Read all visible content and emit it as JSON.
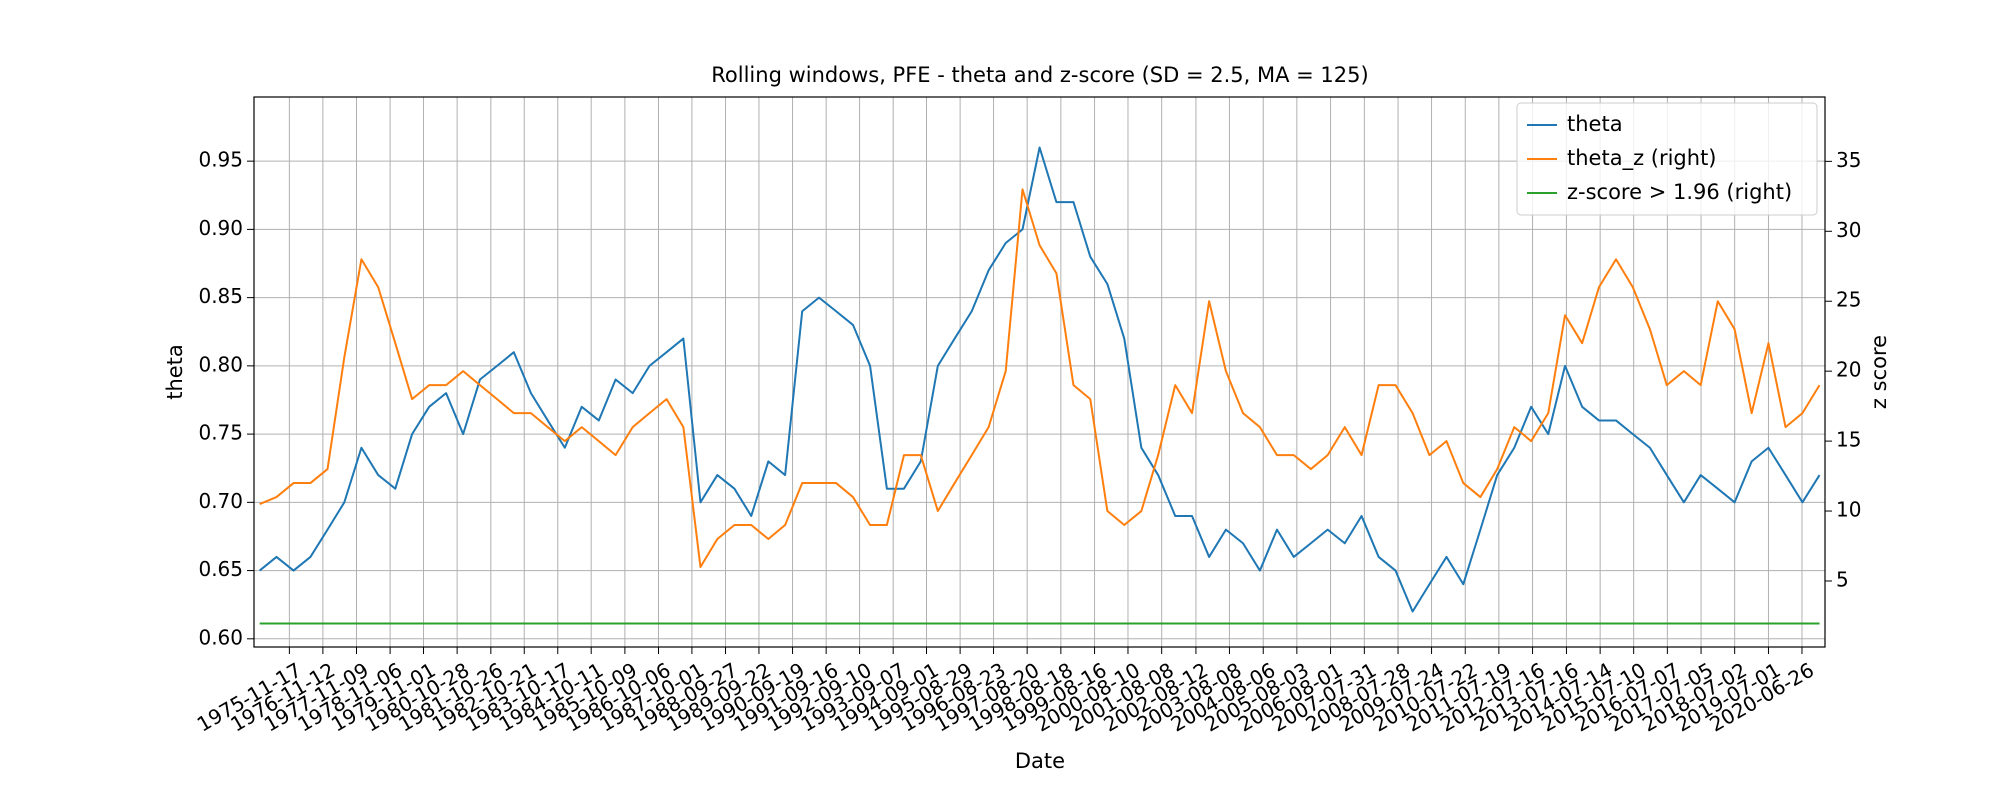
{
  "chart_data": {
    "type": "line",
    "title": "Rolling windows, PFE - theta and z-score (SD = 2.5, MA = 125)",
    "x_label": "Date",
    "y_label": "theta",
    "y2_label": "z score",
    "x": [
      "1975-01-01",
      "1975-07-01",
      "1976-01-01",
      "1976-07-01",
      "1977-01-01",
      "1977-07-01",
      "1978-01-01",
      "1978-07-01",
      "1979-01-01",
      "1979-07-01",
      "1980-01-01",
      "1980-07-01",
      "1981-01-01",
      "1981-07-01",
      "1982-01-01",
      "1982-07-01",
      "1983-01-01",
      "1983-07-01",
      "1984-01-01",
      "1984-07-01",
      "1985-01-01",
      "1985-07-01",
      "1986-01-01",
      "1986-07-01",
      "1987-01-01",
      "1987-07-01",
      "1988-01-01",
      "1988-07-01",
      "1989-01-01",
      "1989-07-01",
      "1990-01-01",
      "1990-07-01",
      "1991-01-01",
      "1991-07-01",
      "1992-01-01",
      "1992-07-01",
      "1993-01-01",
      "1993-07-01",
      "1994-01-01",
      "1994-07-01",
      "1995-01-01",
      "1995-07-01",
      "1996-01-01",
      "1996-07-01",
      "1997-01-01",
      "1997-07-01",
      "1998-01-01",
      "1998-07-01",
      "1999-01-01",
      "1999-07-01",
      "2000-01-01",
      "2000-07-01",
      "2001-01-01",
      "2001-07-01",
      "2002-01-01",
      "2002-07-01",
      "2003-01-01",
      "2003-07-01",
      "2004-01-01",
      "2004-07-01",
      "2005-01-01",
      "2005-07-01",
      "2006-01-01",
      "2006-07-01",
      "2007-01-01",
      "2007-07-01",
      "2008-01-01",
      "2008-07-01",
      "2009-01-01",
      "2009-07-01",
      "2010-01-01",
      "2010-07-01",
      "2011-01-01",
      "2011-07-01",
      "2012-01-01",
      "2012-07-01",
      "2013-01-01",
      "2013-07-01",
      "2014-01-01",
      "2014-07-01",
      "2015-01-01",
      "2015-07-01",
      "2016-01-01",
      "2016-07-01",
      "2017-01-01",
      "2017-07-01",
      "2018-01-01",
      "2018-07-01",
      "2019-01-01",
      "2019-07-01",
      "2020-01-01",
      "2020-07-01",
      "2021-01-01"
    ],
    "series": [
      {
        "name": "theta",
        "color": "#1f77b4",
        "axis": "y",
        "values": [
          0.65,
          0.66,
          0.65,
          0.66,
          0.68,
          0.7,
          0.74,
          0.72,
          0.71,
          0.75,
          0.77,
          0.78,
          0.75,
          0.79,
          0.8,
          0.81,
          0.78,
          0.76,
          0.74,
          0.77,
          0.76,
          0.79,
          0.78,
          0.8,
          0.81,
          0.82,
          0.7,
          0.72,
          0.71,
          0.69,
          0.73,
          0.72,
          0.84,
          0.85,
          0.84,
          0.83,
          0.8,
          0.71,
          0.71,
          0.73,
          0.8,
          0.82,
          0.84,
          0.87,
          0.89,
          0.9,
          0.96,
          0.92,
          0.92,
          0.88,
          0.86,
          0.82,
          0.74,
          0.72,
          0.69,
          0.69,
          0.66,
          0.68,
          0.67,
          0.65,
          0.68,
          0.66,
          0.67,
          0.68,
          0.67,
          0.69,
          0.66,
          0.65,
          0.62,
          0.64,
          0.66,
          0.64,
          0.68,
          0.72,
          0.74,
          0.77,
          0.75,
          0.8,
          0.77,
          0.76,
          0.76,
          0.75,
          0.74,
          0.72,
          0.7,
          0.72,
          0.71,
          0.7,
          0.73,
          0.74,
          0.72,
          0.7,
          0.72
        ]
      },
      {
        "name": "theta_z (right)",
        "color": "#ff7f0e",
        "axis": "y2",
        "values": [
          10.5,
          11,
          12,
          12,
          13,
          21,
          28,
          26,
          22,
          18,
          19,
          19,
          20,
          19,
          18,
          17,
          17,
          16,
          15,
          16,
          15,
          14,
          16,
          17,
          18,
          16,
          6,
          8,
          9,
          9,
          8,
          9,
          12,
          12,
          12,
          11,
          9,
          9,
          14,
          14,
          10,
          12,
          14,
          16,
          20,
          33,
          29,
          27,
          19,
          18,
          10,
          9,
          10,
          14,
          19,
          17,
          25,
          20,
          17,
          16,
          14,
          14,
          13,
          14,
          16,
          14,
          19,
          19,
          17,
          14,
          15,
          12,
          11,
          13,
          16,
          15,
          17,
          24,
          22,
          26,
          28,
          26,
          23,
          19,
          20,
          19,
          25,
          23,
          17,
          22,
          16,
          17,
          19
        ]
      },
      {
        "name": "z-score > 1.96 (right)",
        "color": "#2ca02c",
        "axis": "y2",
        "x": [
          "1975-01-01",
          "2021-01-01"
        ],
        "values": [
          1.96,
          1.96
        ]
      }
    ],
    "xlim": [
      "1974-11-01",
      "2021-03-01"
    ],
    "xticks": [
      "1975-11-17",
      "1976-11-12",
      "1977-11-09",
      "1978-11-06",
      "1979-11-01",
      "1980-10-28",
      "1981-10-26",
      "1982-10-21",
      "1983-10-17",
      "1984-10-11",
      "1985-10-09",
      "1986-10-06",
      "1987-10-01",
      "1988-09-27",
      "1989-09-22",
      "1990-09-19",
      "1991-09-16",
      "1992-09-10",
      "1993-09-07",
      "1994-09-01",
      "1995-08-29",
      "1996-08-23",
      "1997-08-20",
      "1998-08-18",
      "1999-08-16",
      "2000-08-10",
      "2001-08-08",
      "2002-08-12",
      "2003-08-08",
      "2004-08-06",
      "2005-08-03",
      "2006-08-01",
      "2007-07-31",
      "2008-07-28",
      "2009-07-24",
      "2010-07-22",
      "2011-07-19",
      "2012-07-16",
      "2013-07-16",
      "2014-07-14",
      "2015-07-10",
      "2016-07-07",
      "2017-07-05",
      "2018-07-02",
      "2019-07-01",
      "2020-06-26"
    ],
    "ylim": [
      0.594,
      0.997
    ],
    "yticks": [
      {
        "value": 0.6,
        "label": "0.60"
      },
      {
        "value": 0.65,
        "label": "0.65"
      },
      {
        "value": 0.7,
        "label": "0.70"
      },
      {
        "value": 0.75,
        "label": "0.75"
      },
      {
        "value": 0.8,
        "label": "0.80"
      },
      {
        "value": 0.85,
        "label": "0.85"
      },
      {
        "value": 0.9,
        "label": "0.90"
      },
      {
        "value": 0.95,
        "label": "0.95"
      }
    ],
    "y2lim": [
      0.28,
      39.6
    ],
    "y2ticks": [
      5,
      10,
      15,
      20,
      25,
      30,
      35
    ],
    "grid": true,
    "legend": "upper right"
  }
}
